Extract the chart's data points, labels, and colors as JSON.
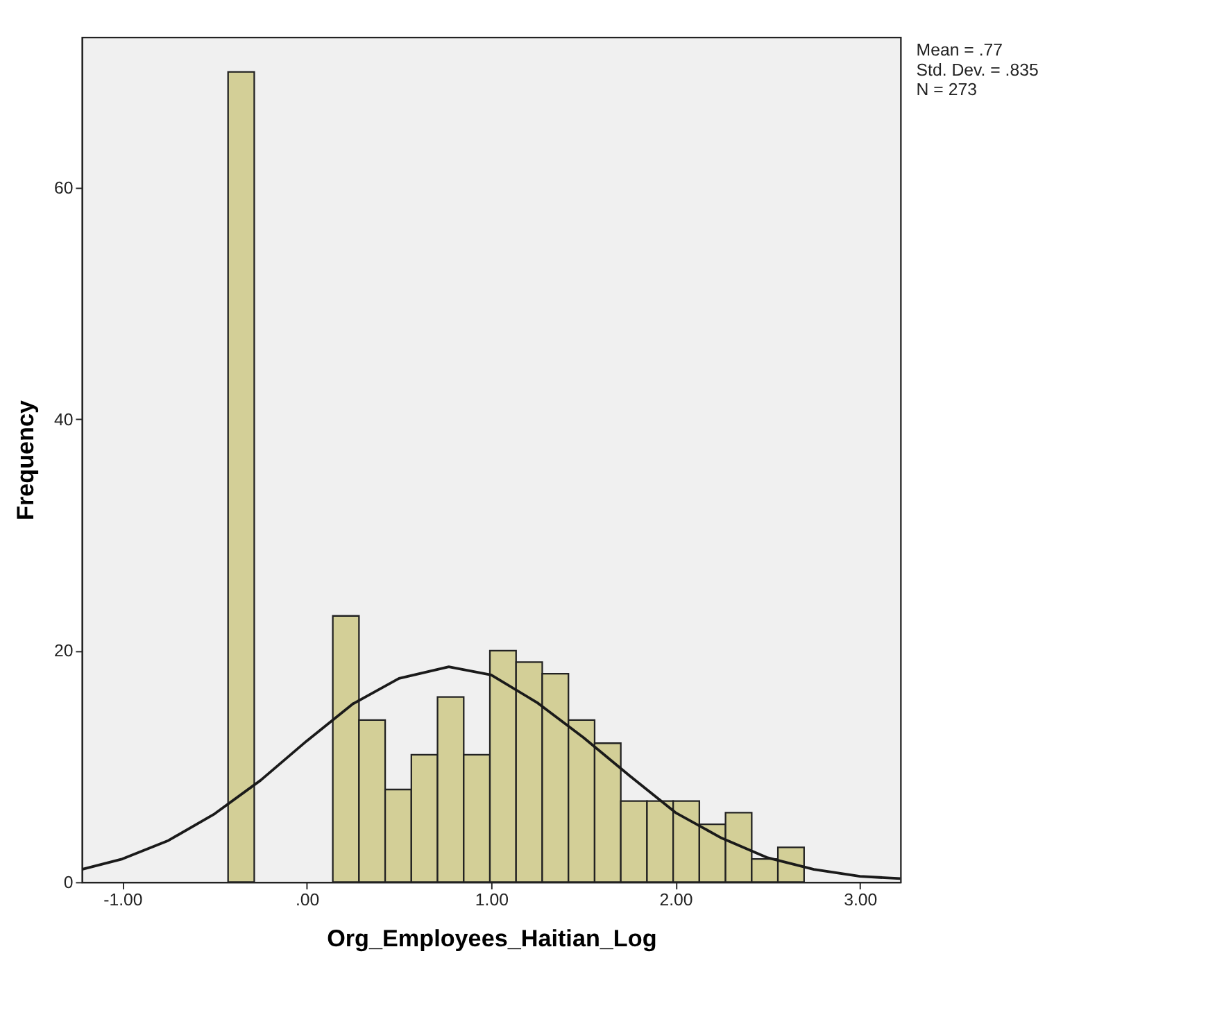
{
  "chart_data": {
    "type": "histogram",
    "xlabel": "Org_Employees_Haitian_Log",
    "ylabel": "Frequency",
    "bins": [
      -0.427,
      -0.285,
      -0.143,
      -0.001,
      0.141,
      0.283,
      0.425,
      0.567,
      0.709,
      0.851,
      0.993,
      1.135,
      1.277,
      1.419,
      1.561,
      1.703,
      1.845,
      1.987,
      2.129,
      2.271,
      2.413,
      2.555,
      2.697
    ],
    "values": [
      70,
      0,
      0,
      0,
      23,
      14,
      8,
      11,
      16,
      11,
      20,
      19,
      18,
      14,
      12,
      7,
      7,
      7,
      5,
      6,
      2,
      3
    ],
    "color": "#d3cf97",
    "series": [
      {
        "type": "line",
        "color": "#1a1a1a",
        "x": [
          -1.22,
          -1.0,
          -0.75,
          -0.5,
          -0.25,
          0,
          0.25,
          0.5,
          0.77,
          1.0,
          1.25,
          1.5,
          1.75,
          2.0,
          2.25,
          2.5,
          2.75,
          3.0,
          3.22
        ],
        "values": [
          1.1,
          2.0,
          3.6,
          5.9,
          8.8,
          12.2,
          15.4,
          17.6,
          18.6,
          17.9,
          15.5,
          12.5,
          9.2,
          6.0,
          3.8,
          2.1,
          1.1,
          0.5,
          0.3
        ]
      }
    ],
    "xlim": [
      -1.22,
      3.22
    ],
    "ylim": [
      0,
      73
    ],
    "xticks": [
      {
        "value": -1,
        "label": "-1.00"
      },
      {
        "value": 0,
        "label": ".00"
      },
      {
        "value": 1,
        "label": "1.00"
      },
      {
        "value": 2,
        "label": "2.00"
      },
      {
        "value": 3,
        "label": "3.00"
      }
    ],
    "yticks": [
      0,
      20,
      40,
      60
    ],
    "grid": false,
    "annotations": [
      "Mean = .77",
      "Std. Dev. = .835",
      "N = 273"
    ]
  }
}
